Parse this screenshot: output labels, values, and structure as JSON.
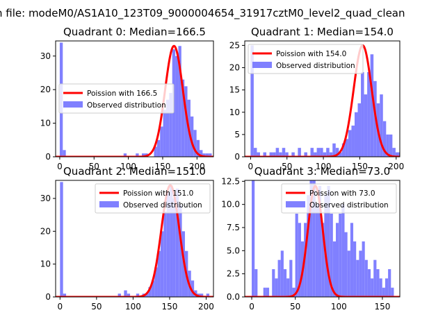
{
  "suptitle": "n file: modeM0/AS1A10_123T09_9000004654_31917cztM0_level2_quad_clean",
  "colors": {
    "hist": "#8080ff",
    "fit": "#ff0000",
    "axis": "#000000"
  },
  "legend_labels": {
    "observed": "Observed distribution"
  },
  "chart_data": [
    {
      "type": "bar+line",
      "quadrant": 0,
      "title": "Quadrant 0: Median=166.5",
      "median": 166.5,
      "fit_label": "Poission with 166.5",
      "xlim": [
        -6,
        224
      ],
      "ylim": [
        0,
        34.5
      ],
      "xticks": [
        0,
        50,
        100,
        150,
        200
      ],
      "yticks": [
        0,
        10,
        20,
        30
      ],
      "legend_loc": "center-left",
      "bin_edges_start": 0,
      "bin_width": 4.43,
      "counts": [
        34,
        2,
        0,
        0,
        0,
        0,
        0,
        0,
        0,
        0,
        0,
        0,
        0,
        0,
        0,
        0,
        0,
        0,
        0,
        0,
        0,
        1,
        0,
        0,
        0,
        1,
        0,
        1,
        1,
        0,
        0,
        3,
        5,
        9,
        14,
        17,
        19,
        32,
        30,
        33,
        23,
        21,
        17,
        12,
        8,
        5,
        2,
        1,
        1,
        1,
        0,
        0,
        0,
        0,
        0,
        0
      ],
      "fit_peak": 33
    },
    {
      "type": "bar+line",
      "quadrant": 1,
      "title": "Quadrant 1: Median=154.0",
      "median": 154.0,
      "fit_label": "Poission with 154.0",
      "xlim": [
        -8,
        205
      ],
      "ylim": [
        0,
        26
      ],
      "xticks": [
        0,
        50,
        100,
        150,
        200
      ],
      "yticks": [
        0,
        5,
        10,
        15,
        20,
        25
      ],
      "legend_loc": "top-left",
      "bin_edges_start": 0,
      "bin_width": 4.33,
      "counts": [
        25,
        2,
        1,
        0,
        1,
        0,
        1,
        1,
        2,
        1,
        2,
        1,
        0,
        1,
        0,
        2,
        0,
        1,
        0,
        2,
        1,
        2,
        2,
        1,
        2,
        1,
        3,
        2,
        1,
        3,
        4,
        6,
        7,
        10,
        12,
        19,
        14,
        19,
        23,
        17,
        12,
        14,
        8,
        5,
        5,
        2,
        1,
        1
      ],
      "fit_peak": 25
    },
    {
      "type": "bar+line",
      "quadrant": 2,
      "title": "Quadrant 2: Median=151.0",
      "median": 151.0,
      "fit_label": "Poission with 151.0",
      "xlim": [
        -6,
        210
      ],
      "ylim": [
        0,
        35.5
      ],
      "xticks": [
        0,
        50,
        100,
        150,
        200
      ],
      "yticks": [
        0,
        10,
        20,
        30
      ],
      "legend_loc": "top-right",
      "bin_edges_start": 0,
      "bin_width": 4.17,
      "counts": [
        35,
        1,
        0,
        0,
        0,
        0,
        0,
        0,
        0,
        0,
        0,
        0,
        0,
        0,
        0,
        0,
        0,
        0,
        0,
        1,
        0,
        2,
        1,
        0,
        0,
        1,
        0,
        1,
        1,
        3,
        5,
        9,
        14,
        20,
        26,
        32,
        34,
        30,
        33,
        28,
        20,
        14,
        8,
        5,
        2,
        1,
        1,
        0,
        1
      ],
      "fit_peak": 34
    },
    {
      "type": "bar+line",
      "quadrant": 3,
      "title": "Quadrant 3: Median=73.0",
      "median": 73.0,
      "fit_label": "Poission with 73.0",
      "xlim": [
        -8,
        170
      ],
      "ylim": [
        0,
        12.6
      ],
      "xticks": [
        0,
        50,
        100,
        150
      ],
      "yticks": [
        0.0,
        2.5,
        5.0,
        7.5,
        10.0,
        12.5
      ],
      "tick_decimals": 1,
      "legend_loc": "top-right",
      "bin_edges_start": 0,
      "bin_width": 3.33,
      "counts": [
        13,
        3,
        0,
        0,
        1,
        1,
        0,
        3,
        2,
        4,
        5,
        3,
        2,
        4,
        1,
        9,
        8,
        6,
        8,
        11,
        13,
        14,
        10,
        12,
        8,
        11,
        12,
        9,
        6,
        8,
        9,
        10,
        7,
        5,
        8,
        6,
        4,
        5,
        6,
        4,
        3,
        2,
        4,
        3,
        2,
        1,
        2,
        3,
        1,
        0
      ],
      "fit_peak": 12
    }
  ]
}
